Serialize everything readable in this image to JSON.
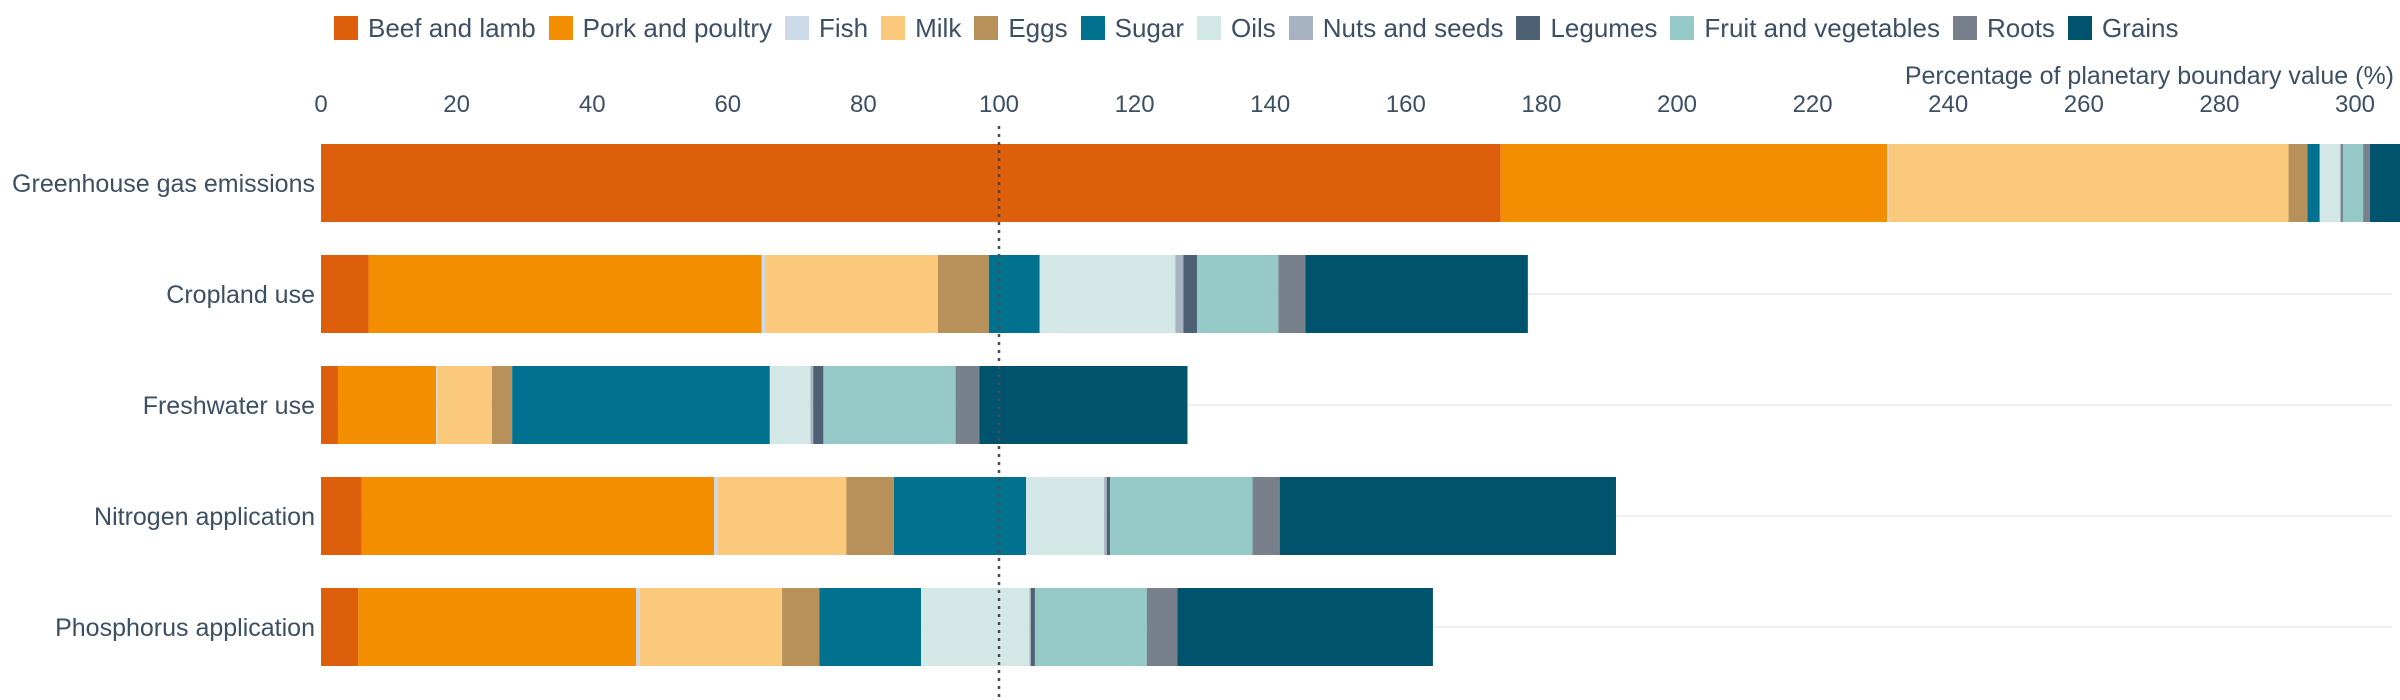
{
  "chart_data": {
    "type": "bar",
    "orientation": "horizontal",
    "stacked": true,
    "title": "",
    "xlabel": "Percentage of planetary boundary value (%)",
    "ylabel": "",
    "xlim": [
      0,
      306
    ],
    "x_ticks": [
      0,
      20,
      40,
      60,
      80,
      100,
      120,
      140,
      160,
      180,
      200,
      220,
      240,
      260,
      280,
      300
    ],
    "x_axis_position": "top",
    "reference_line": {
      "value": 100,
      "style": "dotted"
    },
    "grid": false,
    "legend_position": "top",
    "categories": [
      "Greenhouse gas emissions",
      "Cropland use",
      "Freshwater use",
      "Nitrogen application",
      "Phosphorus application"
    ],
    "series": [
      {
        "name": "Beef and lamb",
        "color": "#dd5f0b",
        "values": [
          174.0,
          7.0,
          2.5,
          6.0,
          5.5
        ]
      },
      {
        "name": "Pork and poultry",
        "color": "#f28e00",
        "values": [
          57.0,
          58.0,
          14.5,
          52.0,
          41.0
        ]
      },
      {
        "name": "Fish",
        "color": "#ccd9e6",
        "values": [
          0.2,
          0.5,
          0.2,
          0.5,
          0.5
        ]
      },
      {
        "name": "Milk",
        "color": "#fbc97c",
        "values": [
          59.0,
          25.5,
          8.0,
          19.0,
          21.0
        ]
      },
      {
        "name": "Eggs",
        "color": "#b8915a",
        "values": [
          2.8,
          7.5,
          3.0,
          7.0,
          5.5
        ]
      },
      {
        "name": "Sugar",
        "color": "#00728f",
        "values": [
          1.8,
          7.5,
          38.0,
          19.5,
          15.0
        ]
      },
      {
        "name": "Oils",
        "color": "#d3e8e6",
        "values": [
          3.0,
          20.0,
          6.0,
          11.5,
          16.0
        ]
      },
      {
        "name": "Nuts and seeds",
        "color": "#a7b3c0",
        "values": [
          0.2,
          1.2,
          0.4,
          0.4,
          0.2
        ]
      },
      {
        "name": "Legumes",
        "color": "#4e6074",
        "values": [
          0.2,
          2.0,
          1.5,
          0.5,
          0.6
        ]
      },
      {
        "name": "Fruit and vegetables",
        "color": "#94c9c8",
        "values": [
          3.0,
          12.0,
          19.5,
          21.0,
          16.5
        ]
      },
      {
        "name": "Roots",
        "color": "#78808c",
        "values": [
          1.0,
          4.0,
          3.5,
          4.0,
          4.5
        ]
      },
      {
        "name": "Grains",
        "color": "#00536d",
        "values": [
          4.5,
          32.8,
          30.7,
          49.6,
          37.7
        ]
      }
    ]
  }
}
